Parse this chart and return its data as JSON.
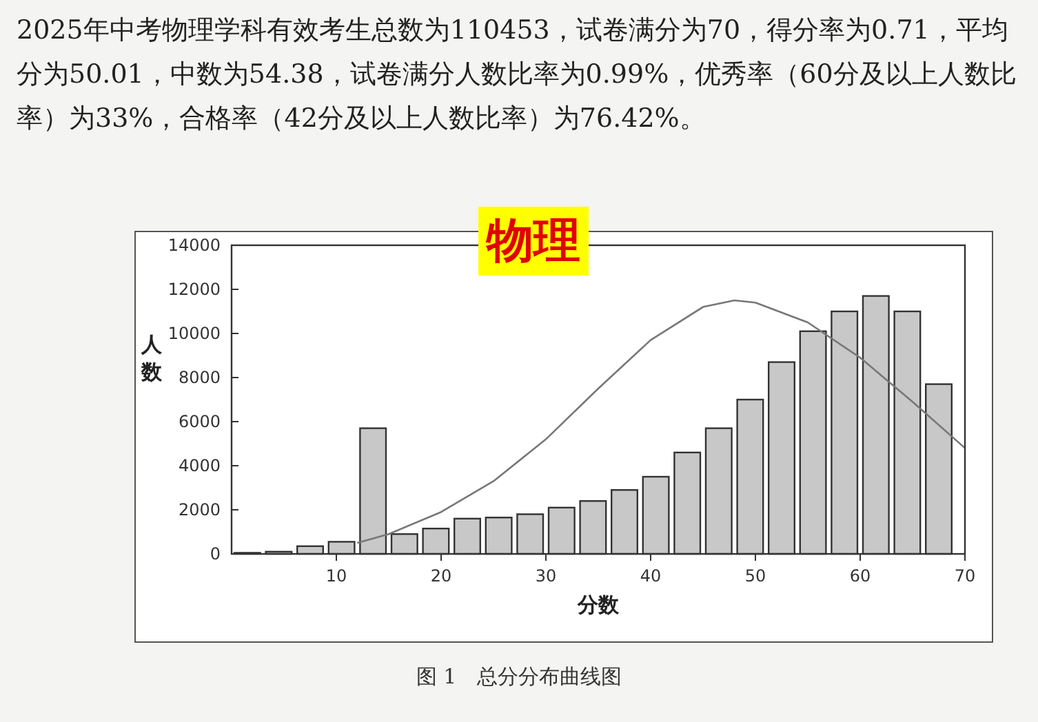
{
  "chart_data": {
    "type": "histogram",
    "title": "物理",
    "subtitle": "2025年中考物理学科有效考生总数为110453，试卷满分为70，得分率为0.71，平均分为50.01，中数为54.38，试卷满分人数比率为0.99%，优秀率（60分及以上人数比率）为33%，合格率（42分及以上人数比率）为76.42%。",
    "xlabel": "分数",
    "ylabel": "人数",
    "annotations": [
      "图 1　总分分布曲线图"
    ],
    "xlim": [
      0,
      70
    ],
    "xticks": [
      10,
      20,
      30,
      40,
      50,
      60,
      70
    ],
    "ylim": [
      0,
      14000
    ],
    "yticks": [
      0,
      2000,
      4000,
      6000,
      8000,
      10000,
      12000,
      14000
    ],
    "grid": false,
    "series": [
      {
        "color": "#c8c8c8",
        "bins": [
          0,
          3,
          6,
          9,
          12,
          15,
          18,
          21,
          24,
          27,
          30,
          33,
          36,
          39,
          42,
          45,
          48,
          51,
          54,
          57,
          60,
          63,
          66,
          69
        ],
        "values": [
          50,
          100,
          350,
          550,
          5700,
          900,
          1150,
          1600,
          1650,
          1800,
          2100,
          2400,
          2900,
          3500,
          4600,
          5700,
          7000,
          8700,
          10100,
          11000,
          11700,
          11000,
          7700
        ]
      },
      {
        "type": "line",
        "color": "#777777",
        "x": [
          12,
          15,
          20,
          25,
          30,
          35,
          40,
          45,
          48,
          50,
          55,
          60,
          65,
          70
        ],
        "values": [
          500,
          900,
          1900,
          3300,
          5200,
          7500,
          9700,
          11200,
          11500,
          11400,
          10500,
          8900,
          6900,
          4800
        ]
      }
    ]
  }
}
